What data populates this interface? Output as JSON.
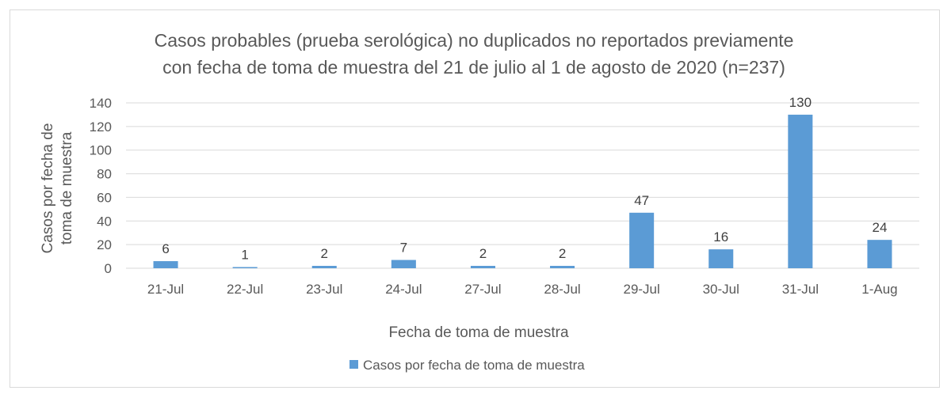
{
  "chart_data": {
    "type": "bar",
    "title": [
      "Casos probables (prueba serológica) no duplicados no reportados previamente",
      "con fecha de toma de muestra del 21 de julio al 1 de agosto de 2020 (n=237)"
    ],
    "xlabel": "Fecha de toma de muestra",
    "ylabel": [
      "Casos por fecha de",
      "toma de muestra"
    ],
    "categories": [
      "21-Jul",
      "22-Jul",
      "23-Jul",
      "24-Jul",
      "27-Jul",
      "28-Jul",
      "29-Jul",
      "30-Jul",
      "31-Jul",
      "1-Aug"
    ],
    "series": [
      {
        "name": "Casos por fecha de toma de muestra",
        "values": [
          6,
          1,
          2,
          7,
          2,
          2,
          47,
          16,
          130,
          24
        ],
        "color": "#5B9BD5"
      }
    ],
    "ylim": [
      0,
      140
    ],
    "yticks": [
      0,
      20,
      40,
      60,
      80,
      100,
      120,
      140
    ],
    "data_labels": true,
    "grid": true,
    "legend_position": "bottom"
  }
}
